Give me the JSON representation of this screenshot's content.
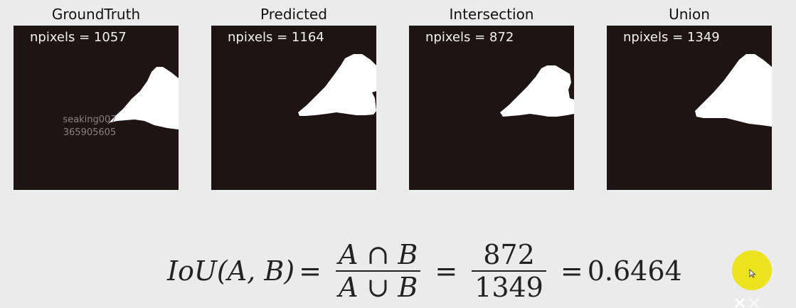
{
  "panels": [
    {
      "title": "GroundTruth",
      "label": "npixels = 1057"
    },
    {
      "title": "Predicted",
      "label": "npixels = 1164"
    },
    {
      "title": "Intersection",
      "label": "npixels = 872"
    },
    {
      "title": "Union",
      "label": "npixels = 1349"
    }
  ],
  "watermark": {
    "line1": "seaking007",
    "line2": "365905605"
  },
  "formula": {
    "lhs": "IoU(A, B)",
    "eq": "=",
    "set_num": "A ∩ B",
    "set_den": "A ∪ B",
    "num": "872",
    "den": "1349",
    "result": "0.6464"
  },
  "colors": {
    "panel_bg": "#1f1414",
    "mask": "#ffffff",
    "cursor_highlight": "#ece21e"
  }
}
